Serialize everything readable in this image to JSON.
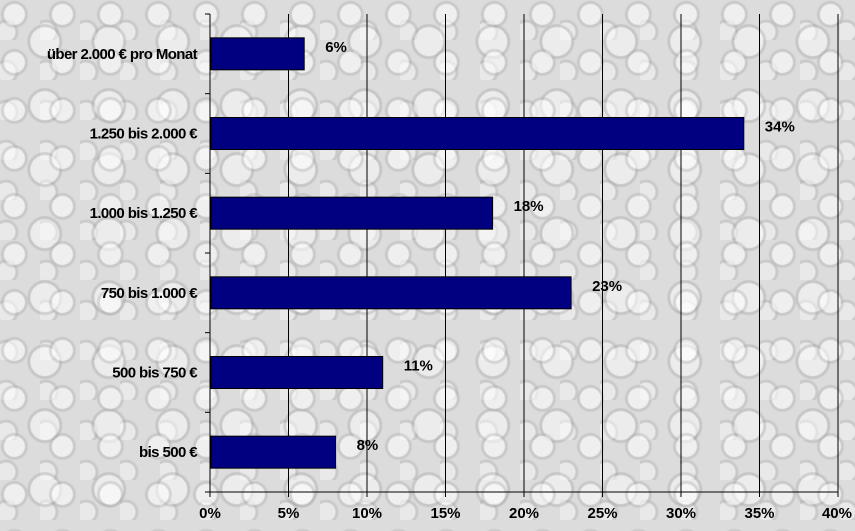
{
  "chart_data": {
    "type": "bar",
    "orientation": "horizontal",
    "categories": [
      "über 2.000 € pro Monat",
      "1.250 bis 2.000 €",
      "1.000 bis 1.250 €",
      "750 bis 1.000 €",
      "500 bis 750 €",
      "bis 500 €"
    ],
    "values": [
      6,
      34,
      18,
      23,
      11,
      8
    ],
    "data_labels": [
      "6%",
      "34%",
      "18%",
      "23%",
      "11%",
      "8%"
    ],
    "x_ticks": [
      "0%",
      "5%",
      "10%",
      "15%",
      "20%",
      "25%",
      "30%",
      "35%",
      "40%"
    ],
    "xlim": [
      0,
      40
    ],
    "grid": "vertical",
    "legend": "none",
    "bar_color": "#000080",
    "background": "coins photo (grey)"
  }
}
